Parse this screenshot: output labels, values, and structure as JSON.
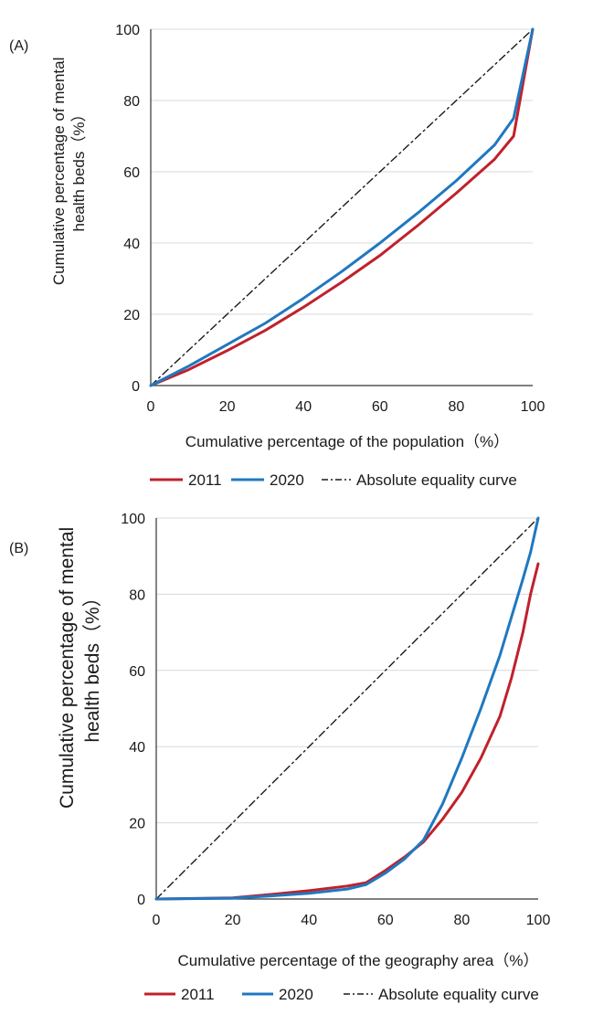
{
  "chart_data": [
    {
      "type": "line",
      "panel_label": "(A)",
      "xlabel": "Cumulative percentage of the population（%）",
      "ylabel_lines": [
        "Cumulative percentage of mental",
        "health beds（%）"
      ],
      "xlim": [
        0,
        100
      ],
      "ylim": [
        0,
        100
      ],
      "xticks": [
        "0",
        "20",
        "40",
        "60",
        "80",
        "100"
      ],
      "yticks": [
        "0",
        "20",
        "40",
        "60",
        "80",
        "100"
      ],
      "grid": "horizontal",
      "legend_position": "bottom",
      "series": [
        {
          "name": "2011",
          "color": "#c0212b",
          "style": "solid",
          "x": [
            0,
            10,
            20,
            30,
            40,
            50,
            60,
            70,
            80,
            90,
            95,
            100
          ],
          "y": [
            0,
            4.5,
            9.8,
            15.5,
            22,
            29,
            36.5,
            45,
            54,
            63.5,
            70,
            100
          ]
        },
        {
          "name": "2020",
          "color": "#1f78c1",
          "style": "solid",
          "x": [
            0,
            10,
            20,
            30,
            40,
            50,
            60,
            70,
            80,
            90,
            95,
            100
          ],
          "y": [
            0,
            5.5,
            11.5,
            17.5,
            24.5,
            32,
            40,
            48.5,
            57.5,
            67.5,
            75,
            100
          ]
        },
        {
          "name": "Absolute equality curve",
          "color": "#1a1a1a",
          "style": "dashdot",
          "x": [
            0,
            100
          ],
          "y": [
            0,
            100
          ]
        }
      ]
    },
    {
      "type": "line",
      "panel_label": "(B)",
      "xlabel": "Cumulative percentage of the geography area（%）",
      "ylabel_lines": [
        "Cumulative percentage of mental",
        "health beds（%）"
      ],
      "xlim": [
        0,
        100
      ],
      "ylim": [
        0,
        100
      ],
      "xticks": [
        "0",
        "20",
        "40",
        "60",
        "80",
        "100"
      ],
      "yticks": [
        "0",
        "20",
        "40",
        "60",
        "80",
        "100"
      ],
      "grid": "horizontal",
      "legend_position": "bottom",
      "series": [
        {
          "name": "2011",
          "color": "#c0212b",
          "style": "solid",
          "x": [
            0,
            20,
            30,
            40,
            50,
            55,
            60,
            65,
            70,
            75,
            80,
            85,
            90,
            93,
            96,
            98,
            100
          ],
          "y": [
            0,
            0.3,
            1.2,
            2.2,
            3.4,
            4.3,
            7.5,
            11,
            15,
            21,
            28,
            37,
            48,
            58,
            70,
            80,
            88
          ]
        },
        {
          "name": "2020",
          "color": "#1f78c1",
          "style": "solid",
          "x": [
            0,
            20,
            30,
            40,
            50,
            55,
            60,
            65,
            70,
            75,
            80,
            85,
            90,
            93,
            96,
            98,
            100
          ],
          "y": [
            0,
            0.2,
            0.8,
            1.5,
            2.6,
            3.8,
            6.8,
            10.5,
            15.5,
            25,
            37,
            50,
            64,
            74,
            84,
            91,
            100
          ]
        },
        {
          "name": "Absolute equality curve",
          "color": "#1a1a1a",
          "style": "dashdot",
          "x": [
            0,
            100
          ],
          "y": [
            0,
            100
          ]
        }
      ]
    }
  ]
}
